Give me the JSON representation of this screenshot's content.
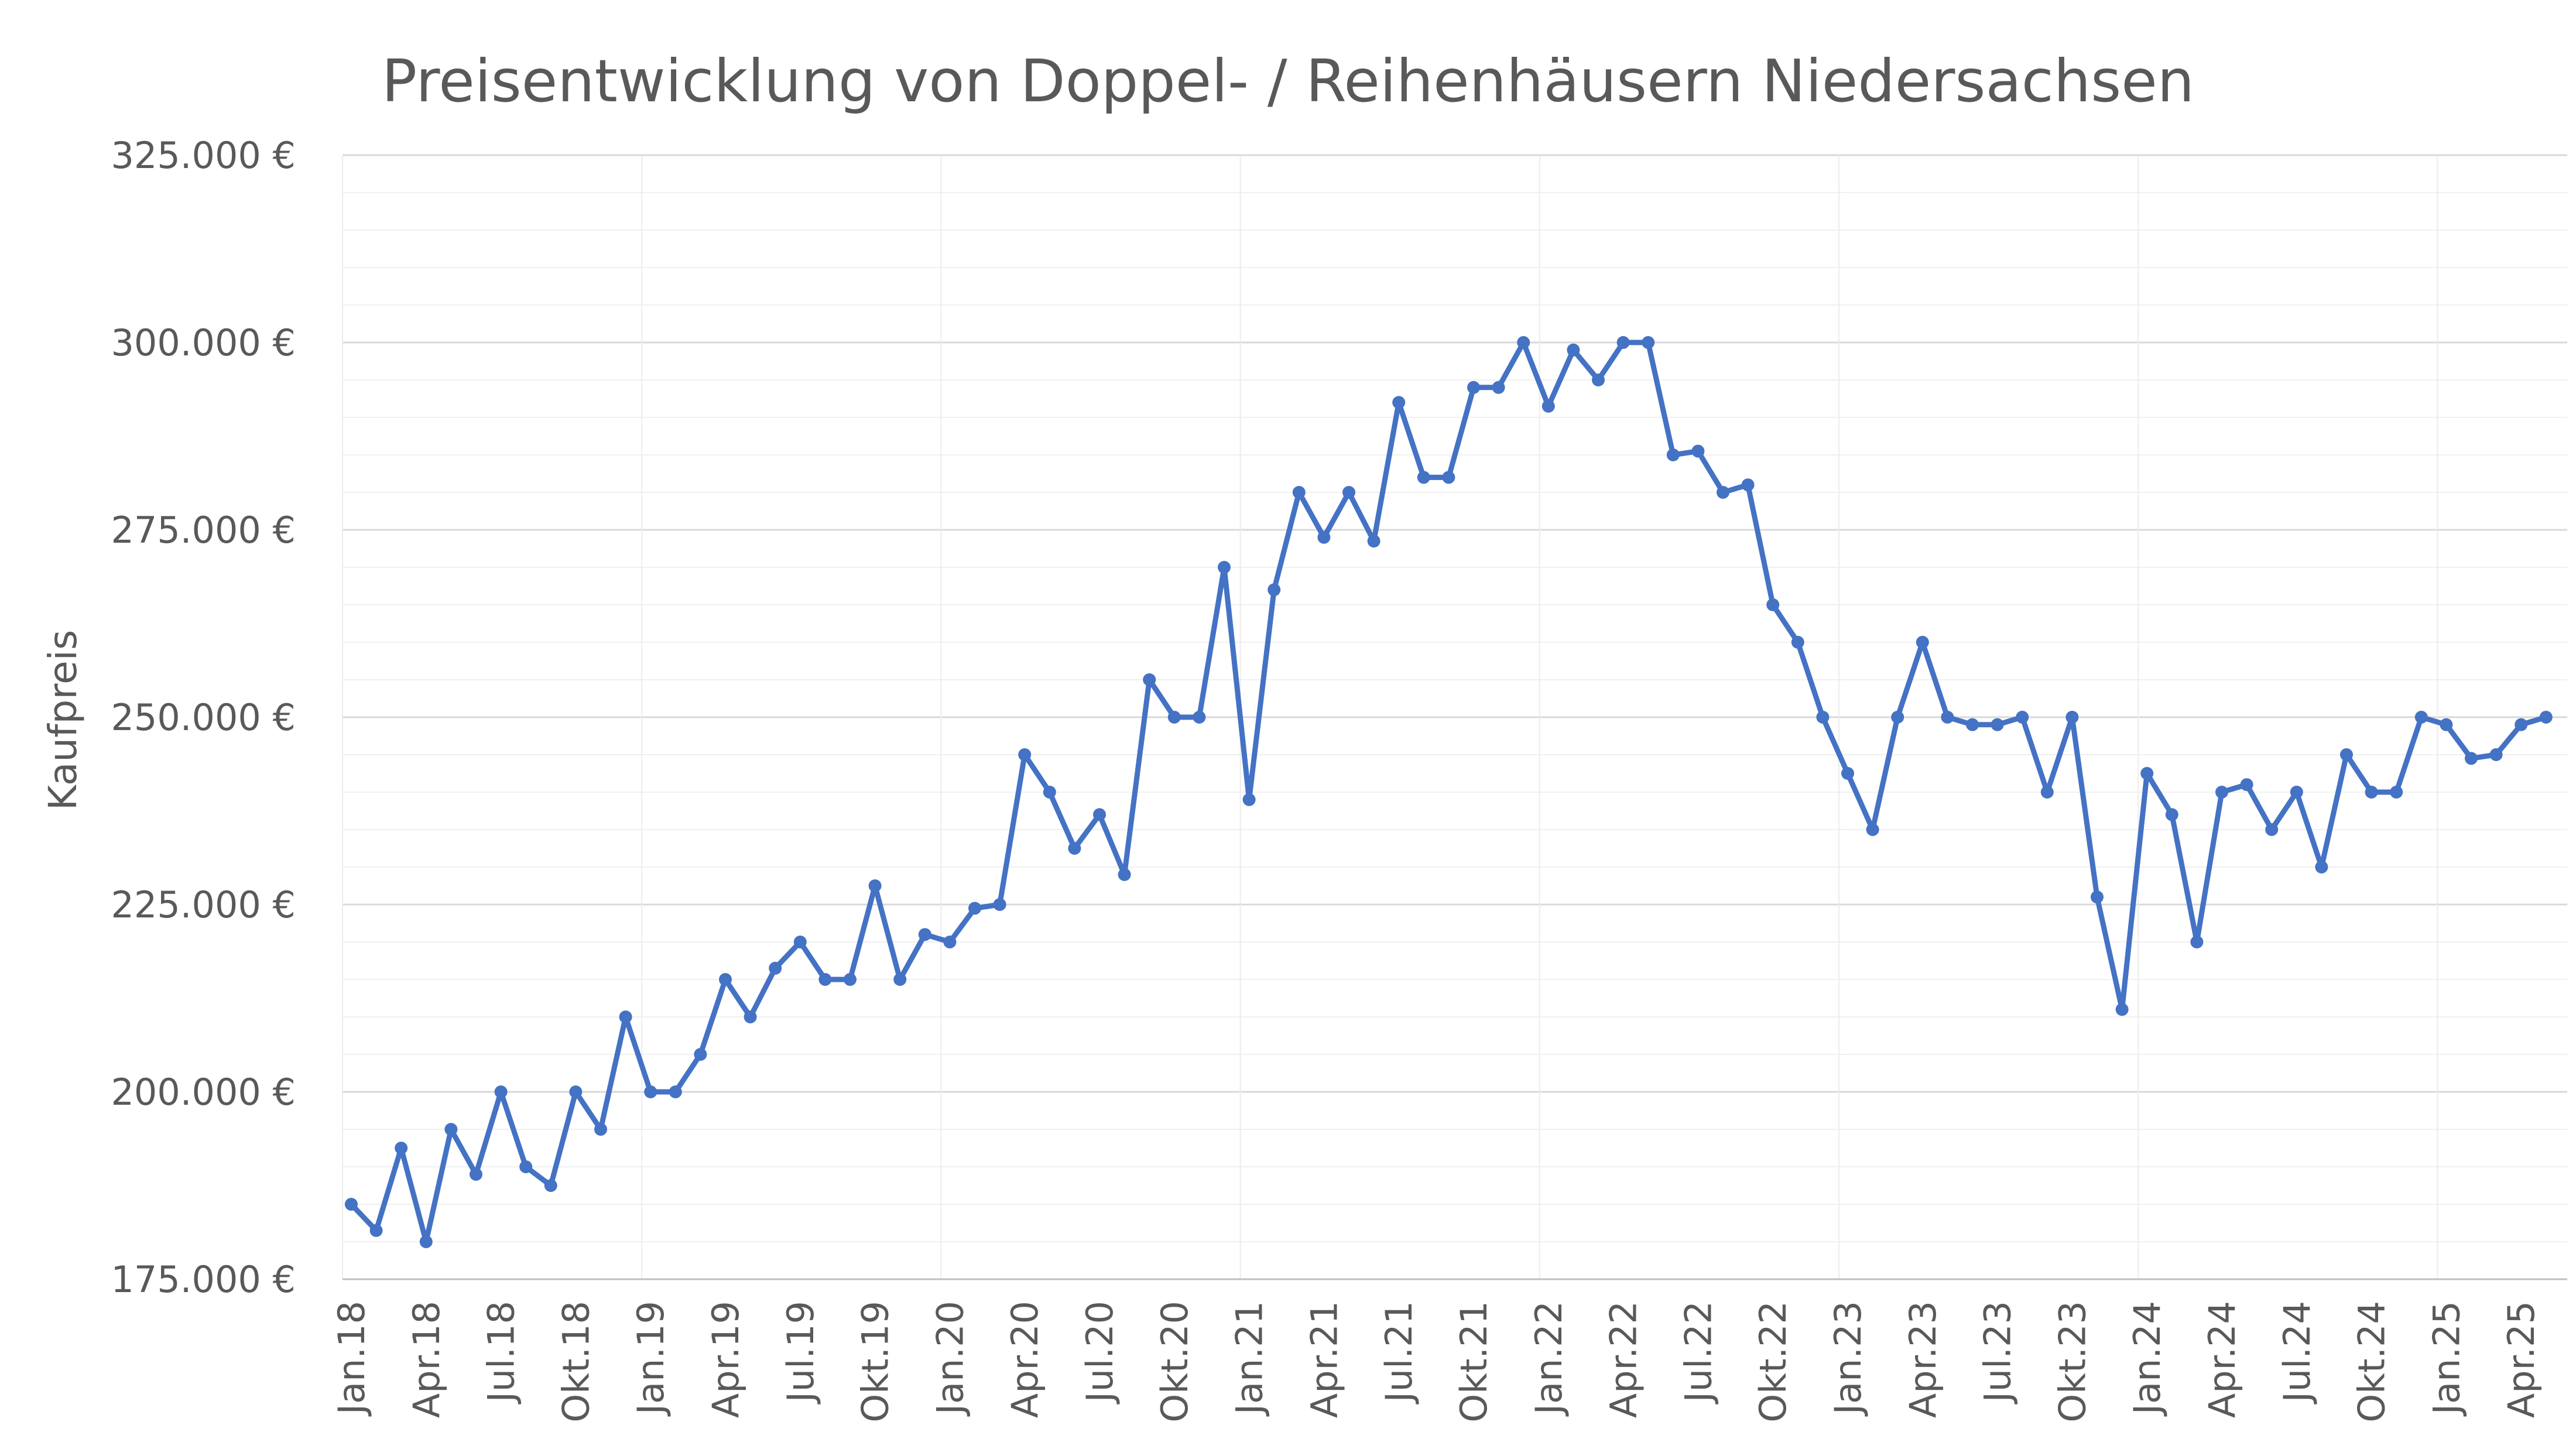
{
  "chart_data": {
    "type": "line",
    "title": "Preisentwicklung von Doppel- / Reihenhäusern Niedersachsen",
    "xlabel": "",
    "ylabel": "Kaufpreis",
    "ylim": [
      175000,
      325000
    ],
    "y_ticks": [
      "175.000 €",
      "200.000 €",
      "225.000 €",
      "250.000 €",
      "275.000 €",
      "300.000 €",
      "325.000 €"
    ],
    "y_tick_values": [
      175000,
      200000,
      225000,
      250000,
      275000,
      300000,
      325000
    ],
    "x_tick_labels": [
      "Jan.18",
      "Apr.18",
      "Jul.18",
      "Okt.18",
      "Jan.19",
      "Apr.19",
      "Jul.19",
      "Okt.19",
      "Jan.20",
      "Apr.20",
      "Jul.20",
      "Okt.20",
      "Jan.21",
      "Apr.21",
      "Jul.21",
      "Okt.21",
      "Jan.22",
      "Apr.22",
      "Jul.22",
      "Okt.22",
      "Jan.23",
      "Apr.23",
      "Jul.23",
      "Okt.23",
      "Jan.24",
      "Apr.24",
      "Jul.24",
      "Okt.24",
      "Jan.25",
      "Apr.25"
    ],
    "grid": true,
    "legend": "none",
    "color": "#4472C4",
    "series": [
      {
        "x": [
          "2018-01",
          "2018-02",
          "2018-03",
          "2018-04",
          "2018-05",
          "2018-06",
          "2018-07",
          "2018-08",
          "2018-09",
          "2018-10",
          "2018-11",
          "2018-12",
          "2019-01",
          "2019-02",
          "2019-03",
          "2019-04",
          "2019-05",
          "2019-06",
          "2019-07",
          "2019-08",
          "2019-09",
          "2019-10",
          "2019-11",
          "2019-12",
          "2020-01",
          "2020-02",
          "2020-03",
          "2020-04",
          "2020-05",
          "2020-06",
          "2020-07",
          "2020-08",
          "2020-09",
          "2020-10",
          "2020-11",
          "2020-12",
          "2021-01",
          "2021-02",
          "2021-03",
          "2021-04",
          "2021-05",
          "2021-06",
          "2021-07",
          "2021-08",
          "2021-09",
          "2021-10",
          "2021-11",
          "2021-12",
          "2022-01",
          "2022-02",
          "2022-03",
          "2022-04",
          "2022-05",
          "2022-06",
          "2022-07",
          "2022-08",
          "2022-09",
          "2022-10",
          "2022-11",
          "2022-12",
          "2023-01",
          "2023-02",
          "2023-03",
          "2023-04",
          "2023-05",
          "2023-06",
          "2023-07",
          "2023-08",
          "2023-09",
          "2023-10",
          "2023-11",
          "2023-12",
          "2024-01",
          "2024-02",
          "2024-03",
          "2024-04",
          "2024-05",
          "2024-06",
          "2024-07",
          "2024-08",
          "2024-09",
          "2024-10",
          "2024-11",
          "2024-12",
          "2025-01",
          "2025-02",
          "2025-03",
          "2025-04",
          "2025-05"
        ],
        "values": [
          185000,
          181500,
          192500,
          180000,
          195000,
          189000,
          200000,
          190000,
          187500,
          200000,
          195000,
          210000,
          200000,
          200000,
          205000,
          215000,
          210000,
          216500,
          220000,
          215000,
          215000,
          227500,
          215000,
          221000,
          220000,
          224500,
          225000,
          245000,
          240000,
          232500,
          237000,
          229000,
          255000,
          250000,
          250000,
          270000,
          239000,
          267000,
          280000,
          274000,
          280000,
          273500,
          292000,
          282000,
          282000,
          294000,
          294000,
          300000,
          291500,
          299000,
          295000,
          300000,
          300000,
          285000,
          285500,
          280000,
          281000,
          265000,
          260000,
          250000,
          242500,
          235000,
          250000,
          260000,
          250000,
          249000,
          249000,
          250000,
          240000,
          250000,
          226000,
          211000,
          242500,
          237000,
          220000,
          240000,
          241000,
          235000,
          240000,
          230000,
          245000,
          240000,
          240000,
          250000,
          249000,
          244500,
          245000,
          249000,
          250000
        ]
      }
    ]
  }
}
